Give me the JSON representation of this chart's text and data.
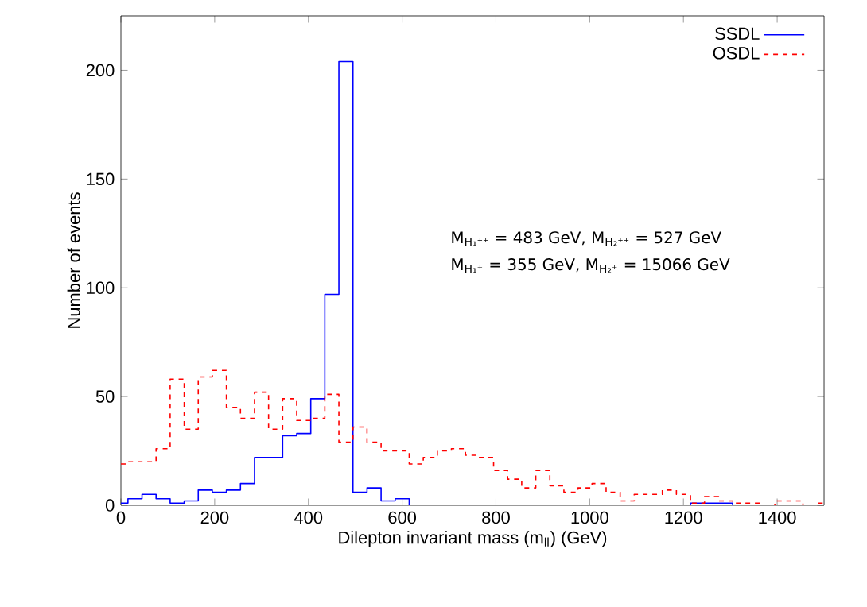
{
  "chart_data": {
    "type": "histogram",
    "xlabel": "Dilepton invariant mass (m$_{ll}$) (GeV)",
    "ylabel": "Number of events",
    "bins": [
      0,
      15,
      45,
      75,
      105,
      135,
      165,
      195,
      225,
      255,
      285,
      315,
      345,
      375,
      405,
      435,
      465,
      495,
      525,
      555,
      585,
      615,
      645,
      675,
      705,
      735,
      765,
      795,
      825,
      855,
      885,
      915,
      945,
      975,
      1005,
      1035,
      1065,
      1095,
      1125,
      1155,
      1185,
      1215,
      1245,
      1275,
      1305,
      1335,
      1365,
      1395,
      1425,
      1455,
      1485,
      1500
    ],
    "series": [
      {
        "name": "SSDL",
        "color": "#0000ff",
        "line_style": "solid",
        "values": [
          1,
          3,
          5,
          3,
          1,
          2,
          7,
          6,
          7,
          10,
          22,
          22,
          32,
          33,
          49,
          97,
          204,
          6,
          8,
          2,
          3,
          0,
          0,
          0,
          0,
          0,
          0,
          0,
          0,
          0,
          0,
          0,
          0,
          0,
          0,
          0,
          0,
          0,
          0,
          0,
          0,
          1,
          1,
          1,
          0,
          0,
          0,
          0,
          0,
          0,
          0
        ]
      },
      {
        "name": "OSDL",
        "color": "#ff0000",
        "line_style": "dashed",
        "values": [
          19,
          20,
          20,
          26,
          58,
          35,
          59,
          62,
          45,
          40,
          52,
          35,
          49,
          39,
          40,
          51,
          29,
          36,
          29,
          25,
          25,
          19,
          22,
          25,
          26,
          23,
          22,
          16,
          12,
          8,
          16,
          9,
          6,
          8,
          10,
          6,
          2,
          5,
          5,
          7,
          5,
          1,
          4,
          2,
          1,
          1,
          0,
          2,
          2,
          0,
          1
        ]
      }
    ],
    "annotations": [
      "M$_{H₁⁺⁺}$ = 483 GeV, M$_{H₂⁺⁺}$ = 527 GeV",
      "M$_{H₁⁺}$ = 355 GeV, M$_{H₂⁺}$ = 15066 GeV"
    ],
    "xlim": [
      0,
      1500
    ],
    "xticks": [
      0,
      200,
      400,
      600,
      800,
      1000,
      1200,
      1400
    ],
    "ylim": [
      0,
      225
    ],
    "yticks": [
      0,
      50,
      100,
      150,
      200
    ],
    "grid": false,
    "legend": "top right"
  }
}
